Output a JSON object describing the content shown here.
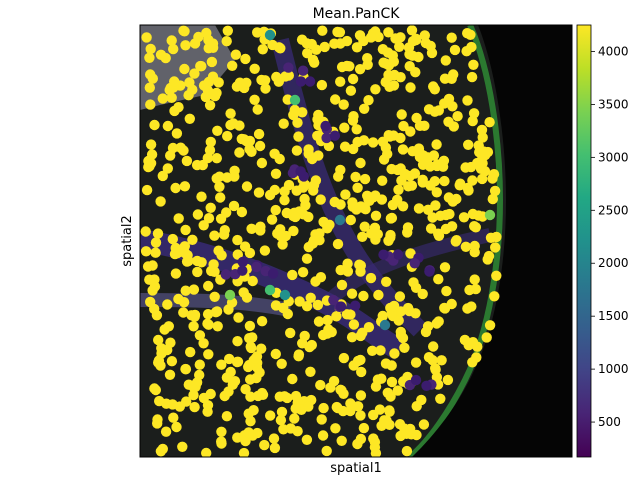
{
  "chart_data": {
    "type": "scatter",
    "title": "Mean.PanCK",
    "xlabel": "spatial1",
    "ylabel": "spatial2",
    "colorbar": {
      "colormap": "viridis",
      "range": [
        170,
        4250
      ],
      "ticks": [
        500,
        1000,
        1500,
        2000,
        2500,
        3000,
        3500,
        4000
      ],
      "tick_labels": [
        "500",
        "1000",
        "1500",
        "2000",
        "2500",
        "3000",
        "3500",
        "4000"
      ]
    },
    "background": "multiplex-fluorescence-tissue-image",
    "point_color_dominant": "#fde725",
    "point_color_low": "#440154",
    "axes_ticks": "none"
  }
}
